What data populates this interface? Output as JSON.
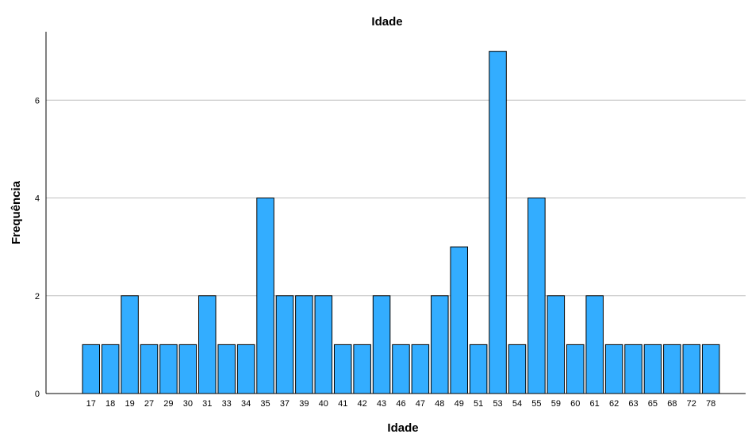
{
  "chart_data": {
    "type": "bar",
    "title": "Idade",
    "xlabel": "Idade",
    "ylabel": "Frequência",
    "categories": [
      "17",
      "18",
      "19",
      "27",
      "29",
      "30",
      "31",
      "33",
      "34",
      "35",
      "37",
      "39",
      "40",
      "41",
      "42",
      "43",
      "46",
      "47",
      "48",
      "49",
      "51",
      "53",
      "54",
      "55",
      "59",
      "60",
      "61",
      "62",
      "63",
      "65",
      "68",
      "72",
      "78"
    ],
    "values": [
      1,
      1,
      2,
      1,
      1,
      1,
      2,
      1,
      1,
      4,
      2,
      2,
      2,
      1,
      1,
      2,
      1,
      1,
      2,
      3,
      1,
      7,
      1,
      4,
      2,
      1,
      2,
      1,
      1,
      1,
      1,
      1,
      1
    ],
    "ylim": [
      0,
      7.4
    ],
    "yticks": [
      0,
      2,
      4,
      6
    ],
    "grid": true,
    "bar_color": "#33adff",
    "bar_stroke": "#000000",
    "grid_color": "#bfbfbf"
  }
}
